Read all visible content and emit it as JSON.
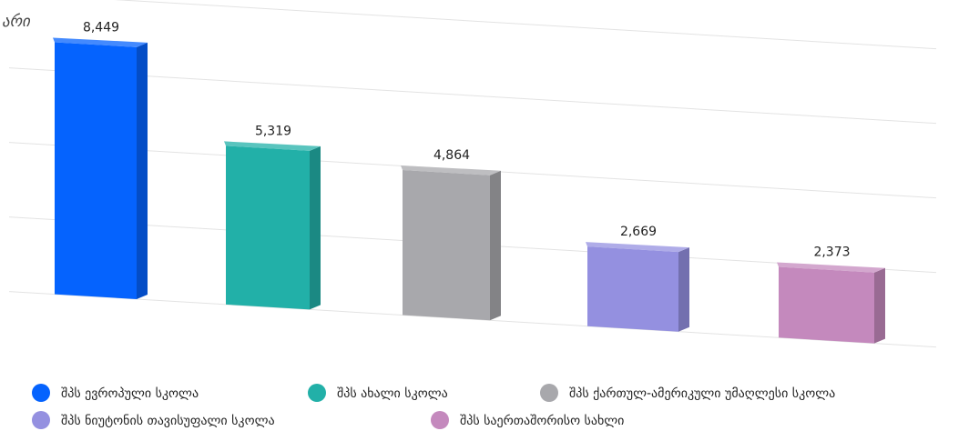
{
  "chart_data": {
    "type": "bar3d",
    "title": "არი",
    "categories": [
      "შპს ევროპული სკოლა",
      "შპს ახალი სკოლა",
      "შპს ქართულ-ამერიკული უმაღლესი სკოლა",
      "შპს ნიუტონის თავისუფალი სკოლა",
      "შპს საერთაშორისო სახლი"
    ],
    "values": [
      8449,
      5319,
      4864,
      2669,
      2373
    ],
    "value_labels": [
      "8,449",
      "5,319",
      "4,864",
      "2,669",
      "2,373"
    ],
    "colors": [
      "#0563fe",
      "#22b0a8",
      "#a8a8ac",
      "#9490e0",
      "#c489bd"
    ],
    "ylim": [
      0,
      10000
    ],
    "yticks": [
      0,
      2500,
      5000,
      7500,
      10000
    ],
    "grid": true
  }
}
